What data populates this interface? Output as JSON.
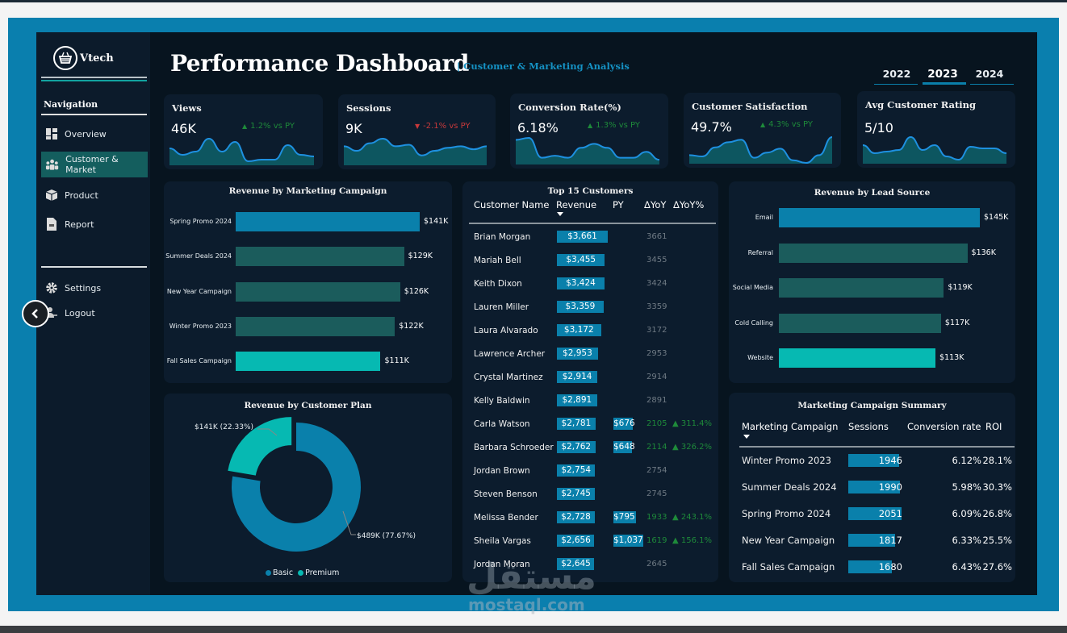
{
  "colors": {
    "blue": "#0a80ab",
    "teal_dark": "#1b5c5c",
    "teal_bright": "#06b9b2",
    "positive": "#1e8a3a",
    "negative": "#c8393b",
    "active_nav": "#145e5e"
  },
  "brand": {
    "name": "Vtech",
    "icon": "shopping-basket-icon"
  },
  "sidebar": {
    "nav_heading": "Navigation",
    "items": [
      {
        "label": "Overview",
        "icon": "dashboard-grid-icon",
        "active": false
      },
      {
        "label": "Customer & Market",
        "icon": "users-icon",
        "active": true
      },
      {
        "label": "Product",
        "icon": "box-icon",
        "active": false
      },
      {
        "label": "Report",
        "icon": "document-icon",
        "active": false
      }
    ],
    "bottom": [
      {
        "label": "Settings",
        "icon": "gear-icon"
      },
      {
        "label": "Logout",
        "icon": "logout-icon"
      }
    ],
    "collapse_icon": "chevron-left-icon"
  },
  "header": {
    "title": "Performance Dashboard",
    "subtitle": "| Customer & Marketing Analysis"
  },
  "years": {
    "options": [
      "2022",
      "2023",
      "2024"
    ],
    "selected": "2023"
  },
  "kpis": [
    {
      "title": "Views",
      "value": "46K",
      "delta": "1.2% vs PY",
      "direction": "up",
      "trend": [
        5,
        3,
        4,
        8,
        4,
        7,
        1,
        1.5,
        1.5,
        6,
        3,
        2.5
      ]
    },
    {
      "title": "Sessions",
      "value": "9K",
      "delta": "-2.1% vs PY",
      "direction": "down",
      "trend": [
        6,
        4.5,
        7,
        8.5,
        6,
        6.5,
        3,
        4.5,
        5.5,
        6,
        5,
        6
      ]
    },
    {
      "title": "Conversion Rate(%)",
      "value": "6.18%",
      "delta": "1.3% vs PY",
      "direction": "up",
      "trend": [
        6,
        6.5,
        1.5,
        2,
        1.5,
        4,
        5,
        4,
        1.5,
        1.5,
        3,
        1
      ]
    },
    {
      "title": "Customer Satisfaction",
      "value": "49.7%",
      "delta": "4.3% vs PY",
      "direction": "up",
      "trend": [
        3,
        2.5,
        6,
        8,
        9,
        2,
        4,
        5.5,
        1,
        0,
        3,
        10
      ]
    },
    {
      "title": "Avg Customer Rating",
      "value": "5/10",
      "delta": "",
      "direction": "",
      "trend": [
        5.5,
        3,
        3.5,
        4,
        8,
        4,
        5.5,
        2,
        1,
        5,
        4.5,
        4.5,
        3
      ]
    }
  ],
  "chart_data": [
    {
      "type": "bar",
      "title": "Revenue by Marketing Campaign",
      "orientation": "horizontal",
      "categories": [
        "Spring Promo 2024",
        "Summer Deals 2024",
        "New Year Campaign",
        "Winter Promo 2023",
        "Fall Sales Campaign"
      ],
      "values": [
        141,
        129,
        126,
        122,
        111
      ],
      "data_labels": [
        "$141K",
        "$129K",
        "$126K",
        "$122K",
        "$111K"
      ],
      "bar_colors": [
        "#0a80ab",
        "#1b5c5c",
        "#1b5c5c",
        "#1b5c5c",
        "#06b9b2"
      ]
    },
    {
      "type": "bar",
      "title": "Revenue by Lead Source",
      "orientation": "horizontal",
      "categories": [
        "Email",
        "Referral",
        "Social Media",
        "Cold Calling",
        "Website"
      ],
      "values": [
        145,
        136,
        119,
        117,
        113
      ],
      "data_labels": [
        "$145K",
        "$136K",
        "$119K",
        "$117K",
        "$113K"
      ],
      "bar_colors": [
        "#0a80ab",
        "#1b5c5c",
        "#1b5c5c",
        "#1b5c5c",
        "#06b9b2"
      ]
    },
    {
      "type": "pie",
      "title": "Revenue by Customer Plan",
      "categories": [
        "Basic",
        "Premium"
      ],
      "values": [
        77.67,
        22.33
      ],
      "data_labels": [
        "$489K (77.67%)",
        "$141K (22.33%)"
      ],
      "colors": [
        "#0a80ab",
        "#06b9b2"
      ],
      "legend": "bottom"
    }
  ],
  "top_customers": {
    "title": "Top 15 Customers",
    "columns": [
      "Customer Name",
      "Revenue",
      "PY",
      "ΔYoY",
      "ΔYoY%"
    ],
    "rows": [
      {
        "name": "Brian Morgan",
        "revenue": "$3,661",
        "rev": 3661,
        "py": "",
        "pyv": 0,
        "dyoy": "3661",
        "dyoyp": ""
      },
      {
        "name": "Mariah Bell",
        "revenue": "$3,455",
        "rev": 3455,
        "py": "",
        "pyv": 0,
        "dyoy": "3455",
        "dyoyp": ""
      },
      {
        "name": "Keith Dixon",
        "revenue": "$3,424",
        "rev": 3424,
        "py": "",
        "pyv": 0,
        "dyoy": "3424",
        "dyoyp": ""
      },
      {
        "name": "Lauren Miller",
        "revenue": "$3,359",
        "rev": 3359,
        "py": "",
        "pyv": 0,
        "dyoy": "3359",
        "dyoyp": ""
      },
      {
        "name": "Laura Alvarado",
        "revenue": "$3,172",
        "rev": 3172,
        "py": "",
        "pyv": 0,
        "dyoy": "3172",
        "dyoyp": ""
      },
      {
        "name": "Lawrence Archer",
        "revenue": "$2,953",
        "rev": 2953,
        "py": "",
        "pyv": 0,
        "dyoy": "2953",
        "dyoyp": ""
      },
      {
        "name": "Crystal Martinez",
        "revenue": "$2,914",
        "rev": 2914,
        "py": "",
        "pyv": 0,
        "dyoy": "2914",
        "dyoyp": ""
      },
      {
        "name": "Kelly Baldwin",
        "revenue": "$2,891",
        "rev": 2891,
        "py": "",
        "pyv": 0,
        "dyoy": "2891",
        "dyoyp": ""
      },
      {
        "name": "Carla Watson",
        "revenue": "$2,781",
        "rev": 2781,
        "py": "$676",
        "pyv": 676,
        "dyoy": "2105",
        "dyoyp": "▲ 311.4%"
      },
      {
        "name": "Barbara Schroeder",
        "revenue": "$2,762",
        "rev": 2762,
        "py": "$648",
        "pyv": 648,
        "dyoy": "2114",
        "dyoyp": "▲ 326.2%"
      },
      {
        "name": "Jordan Brown",
        "revenue": "$2,754",
        "rev": 2754,
        "py": "",
        "pyv": 0,
        "dyoy": "2754",
        "dyoyp": ""
      },
      {
        "name": "Steven Benson",
        "revenue": "$2,745",
        "rev": 2745,
        "py": "",
        "pyv": 0,
        "dyoy": "2745",
        "dyoyp": ""
      },
      {
        "name": "Melissa Bender",
        "revenue": "$2,728",
        "rev": 2728,
        "py": "$795",
        "pyv": 795,
        "dyoy": "1933",
        "dyoyp": "▲ 243.1%"
      },
      {
        "name": "Sheila Vargas",
        "revenue": "$2,656",
        "rev": 2656,
        "py": "$1,037",
        "pyv": 1037,
        "dyoy": "1619",
        "dyoyp": "▲ 156.1%"
      },
      {
        "name": "Jordan Moran",
        "revenue": "$2,645",
        "rev": 2645,
        "py": "",
        "pyv": 0,
        "dyoy": "2645",
        "dyoyp": ""
      }
    ]
  },
  "campaign_summary": {
    "title": "Marketing Campaign Summary",
    "columns": [
      "Marketing Campaign",
      "Sessions",
      "Conversion rate",
      "ROI"
    ],
    "rows": [
      {
        "campaign": "Winter Promo 2023",
        "sessions": 1946,
        "conversion": "6.12%",
        "roi": "28.1%"
      },
      {
        "campaign": "Summer Deals 2024",
        "sessions": 1990,
        "conversion": "5.98%",
        "roi": "30.3%"
      },
      {
        "campaign": "Spring Promo 2024",
        "sessions": 2051,
        "conversion": "6.09%",
        "roi": "26.8%"
      },
      {
        "campaign": "New Year Campaign",
        "sessions": 1817,
        "conversion": "6.33%",
        "roi": "25.5%"
      },
      {
        "campaign": "Fall Sales Campaign",
        "sessions": 1680,
        "conversion": "6.43%",
        "roi": "27.6%"
      }
    ]
  },
  "watermark": {
    "text": "mostaql.com"
  }
}
